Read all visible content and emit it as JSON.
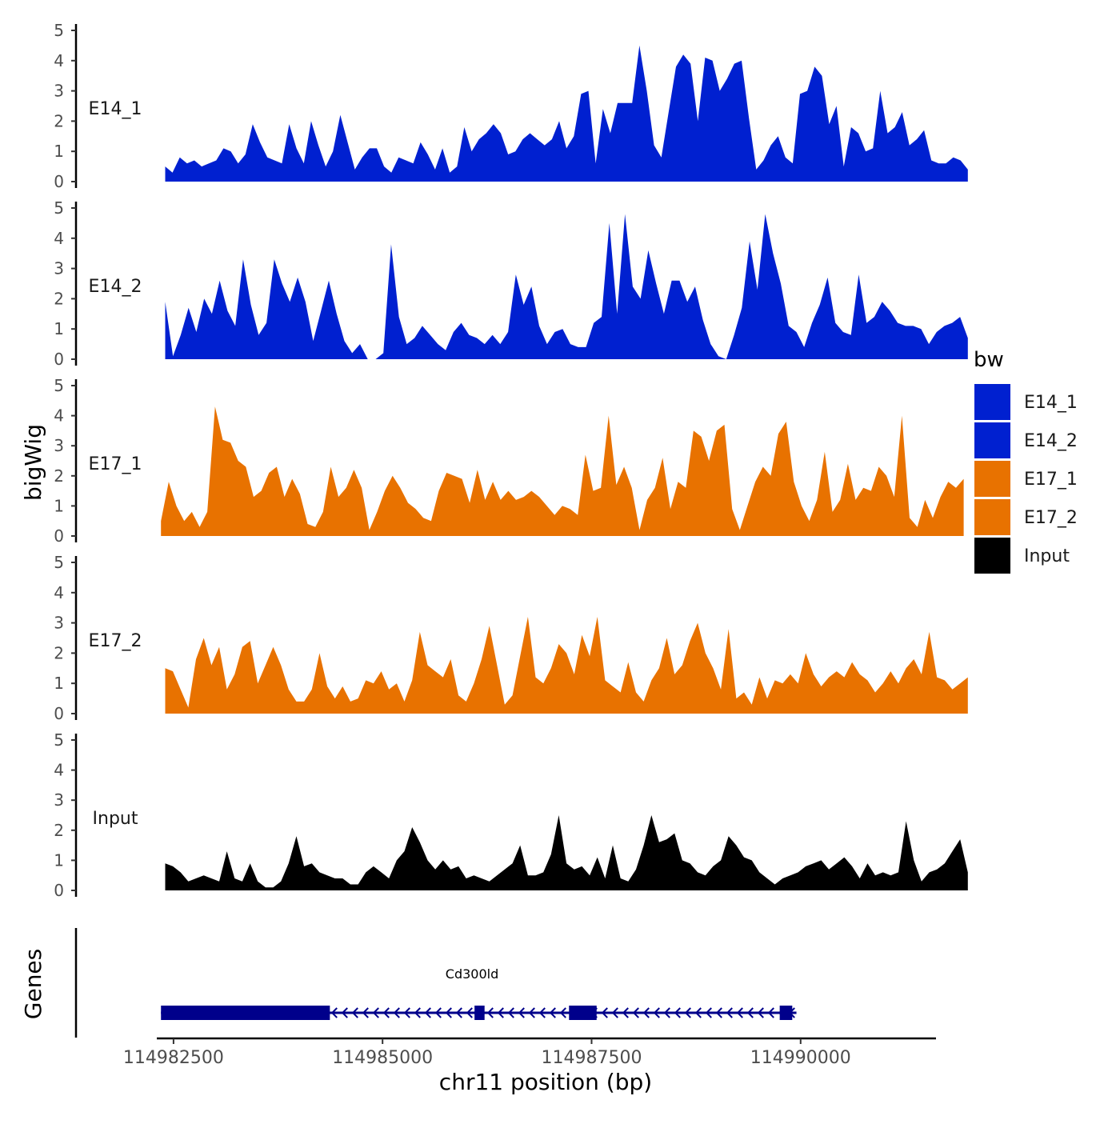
{
  "chart_data": {
    "type": "area",
    "title": "",
    "ylabel": "bigWig",
    "xlabel": "chr11 position (bp)",
    "xlim": [
      114982300,
      114991600
    ],
    "ylim": [
      0,
      5
    ],
    "yticks": [
      "0",
      "1",
      "2",
      "3",
      "4",
      "5"
    ],
    "xticks": [
      {
        "value": 114982500,
        "label": "114982500"
      },
      {
        "value": 114985000,
        "label": "114985000"
      },
      {
        "value": 114987500,
        "label": "114987500"
      },
      {
        "value": 114990000,
        "label": "114990000"
      }
    ],
    "tracks": [
      {
        "name": "E14_1",
        "label": "E14_1",
        "color": "#0020D0",
        "x_start": 114982400,
        "x_end": 114992000,
        "values": [
          0.5,
          0.3,
          0.8,
          0.6,
          0.7,
          0.5,
          0.6,
          0.7,
          1.1,
          1.0,
          0.6,
          0.9,
          1.9,
          1.3,
          0.8,
          0.7,
          0.6,
          1.9,
          1.1,
          0.6,
          2.0,
          1.2,
          0.5,
          1.0,
          2.2,
          1.3,
          0.4,
          0.8,
          1.1,
          1.1,
          0.5,
          0.3,
          0.8,
          0.7,
          0.6,
          1.3,
          0.9,
          0.4,
          1.1,
          0.3,
          0.5,
          1.8,
          1.0,
          1.4,
          1.6,
          1.9,
          1.6,
          0.9,
          1.0,
          1.4,
          1.6,
          1.4,
          1.2,
          1.4,
          2.0,
          1.1,
          1.5,
          2.9,
          3.0,
          0.6,
          2.4,
          1.6,
          2.6,
          2.6,
          2.6,
          4.5,
          3.0,
          1.2,
          0.8,
          2.3,
          3.8,
          4.2,
          3.9,
          2.0,
          4.1,
          4.0,
          3.0,
          3.4,
          3.9,
          4.0,
          2.1,
          0.4,
          0.7,
          1.2,
          1.5,
          0.8,
          0.6,
          2.9,
          3.0,
          3.8,
          3.5,
          1.9,
          2.5,
          0.5,
          1.8,
          1.6,
          1.0,
          1.1,
          3.0,
          1.6,
          1.8,
          2.3,
          1.2,
          1.4,
          1.7,
          0.7,
          0.6,
          0.6,
          0.8,
          0.7,
          0.4
        ]
      },
      {
        "name": "E14_2",
        "label": "E14_2",
        "color": "#0020D0",
        "x_start": 114982400,
        "x_end": 114992000,
        "values": [
          1.9,
          0.1,
          0.8,
          1.7,
          0.9,
          2.0,
          1.5,
          2.6,
          1.6,
          1.1,
          3.3,
          1.8,
          0.8,
          1.2,
          3.3,
          2.5,
          1.9,
          2.7,
          1.9,
          0.6,
          1.6,
          2.6,
          1.5,
          0.6,
          0.2,
          0.5,
          0.0,
          0.0,
          0.2,
          3.8,
          1.4,
          0.5,
          0.7,
          1.1,
          0.8,
          0.5,
          0.3,
          0.9,
          1.2,
          0.8,
          0.7,
          0.5,
          0.8,
          0.5,
          0.9,
          2.8,
          1.8,
          2.4,
          1.1,
          0.5,
          0.9,
          1.0,
          0.5,
          0.4,
          0.4,
          1.2,
          1.4,
          4.5,
          1.5,
          4.8,
          2.4,
          2.0,
          3.6,
          2.5,
          1.5,
          2.6,
          2.6,
          1.9,
          2.4,
          1.3,
          0.5,
          0.1,
          0.0,
          0.8,
          1.7,
          3.9,
          2.3,
          4.8,
          3.5,
          2.5,
          1.1,
          0.9,
          0.4,
          1.2,
          1.8,
          2.7,
          1.2,
          0.9,
          0.8,
          2.8,
          1.2,
          1.4,
          1.9,
          1.6,
          1.2,
          1.1,
          1.1,
          1.0,
          0.5,
          0.9,
          1.1,
          1.2,
          1.4,
          0.7
        ]
      },
      {
        "name": "E17_1",
        "label": "E17_1",
        "color": "#E87200",
        "x_start": 114982350,
        "x_end": 114991950,
        "values": [
          0.5,
          1.8,
          1.0,
          0.5,
          0.8,
          0.3,
          0.8,
          4.3,
          3.2,
          3.1,
          2.5,
          2.3,
          1.3,
          1.5,
          2.1,
          2.3,
          1.3,
          1.9,
          1.4,
          0.4,
          0.3,
          0.8,
          2.3,
          1.3,
          1.6,
          2.2,
          1.6,
          0.2,
          0.8,
          1.5,
          2.0,
          1.6,
          1.1,
          0.9,
          0.6,
          0.5,
          1.5,
          2.1,
          2.0,
          1.9,
          1.1,
          2.2,
          1.2,
          1.8,
          1.2,
          1.5,
          1.2,
          1.3,
          1.5,
          1.3,
          1.0,
          0.7,
          1.0,
          0.9,
          0.7,
          2.7,
          1.5,
          1.6,
          4.0,
          1.7,
          2.3,
          1.6,
          0.2,
          1.2,
          1.6,
          2.6,
          0.9,
          1.8,
          1.6,
          3.5,
          3.3,
          2.5,
          3.5,
          3.7,
          0.9,
          0.2,
          1.0,
          1.8,
          2.3,
          2.0,
          3.4,
          3.8,
          1.8,
          1.0,
          0.5,
          1.2,
          2.8,
          0.8,
          1.2,
          2.4,
          1.2,
          1.6,
          1.5,
          2.3,
          2.0,
          1.3,
          4.0,
          0.6,
          0.3,
          1.2,
          0.6,
          1.3,
          1.8,
          1.6,
          1.9
        ]
      },
      {
        "name": "E17_2",
        "label": "E17_2",
        "color": "#E87200",
        "x_start": 114982400,
        "x_end": 114992000,
        "values": [
          1.5,
          1.4,
          0.8,
          0.2,
          1.8,
          2.5,
          1.6,
          2.2,
          0.8,
          1.3,
          2.2,
          2.4,
          1.0,
          1.6,
          2.2,
          1.6,
          0.8,
          0.4,
          0.4,
          0.8,
          2.0,
          0.9,
          0.5,
          0.9,
          0.4,
          0.5,
          1.1,
          1.0,
          1.4,
          0.8,
          1.0,
          0.4,
          1.1,
          2.7,
          1.6,
          1.4,
          1.2,
          1.8,
          0.6,
          0.4,
          1.0,
          1.8,
          2.9,
          1.6,
          0.3,
          0.6,
          1.9,
          3.2,
          1.2,
          1.0,
          1.5,
          2.3,
          2.0,
          1.3,
          2.6,
          1.9,
          3.2,
          1.1,
          0.9,
          0.7,
          1.7,
          0.7,
          0.4,
          1.1,
          1.5,
          2.5,
          1.3,
          1.6,
          2.4,
          3.0,
          2.0,
          1.5,
          0.8,
          2.8,
          0.5,
          0.7,
          0.3,
          1.2,
          0.5,
          1.1,
          1.0,
          1.3,
          1.0,
          2.0,
          1.3,
          0.9,
          1.2,
          1.4,
          1.2,
          1.7,
          1.3,
          1.1,
          0.7,
          1.0,
          1.4,
          1.0,
          1.5,
          1.8,
          1.3,
          2.7,
          1.2,
          1.1,
          0.8,
          1.0,
          1.2
        ]
      },
      {
        "name": "Input",
        "label": "Input",
        "color": "#000000",
        "x_start": 114982400,
        "x_end": 114992000,
        "values": [
          0.9,
          0.8,
          0.6,
          0.3,
          0.4,
          0.5,
          0.4,
          0.3,
          1.3,
          0.4,
          0.3,
          0.9,
          0.3,
          0.1,
          0.1,
          0.3,
          0.9,
          1.8,
          0.8,
          0.9,
          0.6,
          0.5,
          0.4,
          0.4,
          0.2,
          0.2,
          0.6,
          0.8,
          0.6,
          0.4,
          1.0,
          1.3,
          2.1,
          1.6,
          1.0,
          0.7,
          1.0,
          0.7,
          0.8,
          0.4,
          0.5,
          0.4,
          0.3,
          0.5,
          0.7,
          0.9,
          1.5,
          0.5,
          0.5,
          0.6,
          1.2,
          2.5,
          0.9,
          0.7,
          0.8,
          0.5,
          1.1,
          0.4,
          1.5,
          0.4,
          0.3,
          0.7,
          1.5,
          2.5,
          1.6,
          1.7,
          1.9,
          1.0,
          0.9,
          0.6,
          0.5,
          0.8,
          1.0,
          1.8,
          1.5,
          1.1,
          1.0,
          0.6,
          0.4,
          0.2,
          0.4,
          0.5,
          0.6,
          0.8,
          0.9,
          1.0,
          0.7,
          0.9,
          1.1,
          0.8,
          0.4,
          0.9,
          0.5,
          0.6,
          0.5,
          0.6,
          2.3,
          1.0,
          0.3,
          0.6,
          0.7,
          0.9,
          1.3,
          1.7,
          0.6
        ]
      }
    ],
    "genes": {
      "title": "Genes",
      "items": [
        {
          "name": "Cd300ld",
          "start": 114982350,
          "end": 114989950,
          "strand": "-",
          "exons": [
            [
              114982350,
              114984370
            ],
            [
              114986100,
              114986220
            ],
            [
              114987230,
              114987560
            ],
            [
              114989750,
              114989900
            ]
          ]
        }
      ]
    },
    "legend": {
      "title": "bw",
      "position": "right",
      "entries": [
        {
          "label": "E14_1",
          "color": "#0020D0"
        },
        {
          "label": "E14_2",
          "color": "#0020D0"
        },
        {
          "label": "E17_1",
          "color": "#E87200"
        },
        {
          "label": "E17_2",
          "color": "#E87200"
        },
        {
          "label": "Input",
          "color": "#000000"
        }
      ]
    }
  }
}
